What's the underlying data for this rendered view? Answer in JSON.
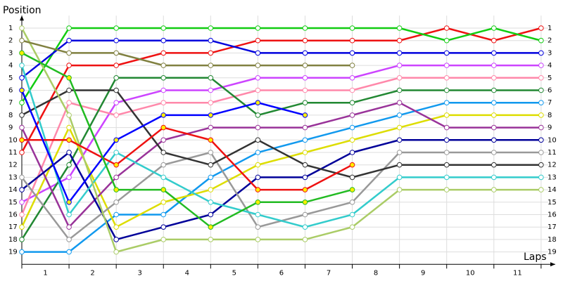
{
  "chart_data": {
    "type": "line",
    "y_title": "Position",
    "x_title": "Laps",
    "x": [
      0,
      1,
      2,
      3,
      4,
      5,
      6,
      7,
      8,
      9,
      10,
      11
    ],
    "xlim": [
      0,
      11.3
    ],
    "xticks": [
      {
        "value": 0.5,
        "label": "1"
      },
      {
        "value": 1.5,
        "label": "2"
      },
      {
        "value": 2.5,
        "label": "3"
      },
      {
        "value": 3.5,
        "label": "4"
      },
      {
        "value": 4.5,
        "label": "5"
      },
      {
        "value": 5.5,
        "label": "6"
      },
      {
        "value": 6.5,
        "label": "7"
      },
      {
        "value": 7.5,
        "label": "8"
      },
      {
        "value": 8.5,
        "label": "9"
      },
      {
        "value": 9.5,
        "label": "10"
      },
      {
        "value": 10.5,
        "label": "11"
      }
    ],
    "ylim": [
      0,
      20
    ],
    "y_inverted": true,
    "yticks": [
      1,
      2,
      3,
      4,
      5,
      6,
      7,
      8,
      9,
      10,
      11,
      12,
      13,
      14,
      15,
      16,
      17,
      18,
      19
    ],
    "grid": true,
    "series": [
      {
        "color": "#ee1111",
        "marker_fill": "#ffffff",
        "values": [
          11,
          4,
          4,
          3,
          3,
          2,
          2,
          2,
          2,
          1,
          2,
          1
        ]
      },
      {
        "color": "#11cc11",
        "marker_fill": "#ffffff",
        "values": [
          7,
          1,
          1,
          1,
          1,
          1,
          1,
          1,
          1,
          2,
          1,
          2
        ]
      },
      {
        "color": "#0000dd",
        "marker_fill": "#ffffff",
        "values": [
          5,
          2,
          2,
          2,
          2,
          3,
          3,
          3,
          3,
          3,
          3,
          3
        ]
      },
      {
        "color": "#cc44ff",
        "marker_fill": "#ffffff",
        "values": [
          15,
          13,
          7,
          6,
          6,
          5,
          5,
          5,
          4,
          4,
          4,
          4
        ]
      },
      {
        "color": "#ff88aa",
        "marker_fill": "#ffffff",
        "values": [
          16,
          7,
          8,
          7,
          7,
          6,
          6,
          6,
          5,
          5,
          5,
          5
        ]
      },
      {
        "color": "#228833",
        "marker_fill": "#ffffff",
        "values": [
          18,
          12,
          5,
          5,
          5,
          8,
          7,
          7,
          6,
          6,
          6,
          6
        ]
      },
      {
        "color": "#1199ee",
        "marker_fill": "#ffffff",
        "values": [
          19,
          19,
          16,
          16,
          13,
          11,
          10,
          9,
          8,
          7,
          7,
          7
        ]
      },
      {
        "color": "#dddd00",
        "marker_fill": "#ffffff",
        "values": [
          17,
          9,
          17,
          15,
          14,
          12,
          11,
          10,
          9,
          8,
          8,
          8
        ]
      },
      {
        "color": "#993399",
        "marker_fill": "#ffffff",
        "values": [
          9,
          17,
          13,
          10,
          9,
          9,
          9,
          8,
          7,
          9,
          9,
          9
        ]
      },
      {
        "color": "#000099",
        "marker_fill": "#ffffff",
        "values": [
          14,
          11,
          18,
          17,
          16,
          13,
          13,
          11,
          10,
          10,
          10,
          10
        ]
      },
      {
        "color": "#999999",
        "marker_fill": "#ffffff",
        "values": [
          13,
          18,
          15,
          12,
          11,
          17,
          16,
          15,
          11,
          11,
          11,
          11
        ]
      },
      {
        "color": "#333333",
        "marker_fill": "#ffffff",
        "values": [
          8,
          6,
          6,
          11,
          12,
          10,
          12,
          13,
          12,
          12,
          12,
          12
        ]
      },
      {
        "color": "#33cccc",
        "marker_fill": "#ffffff",
        "values": [
          4,
          16,
          11,
          13,
          15,
          16,
          17,
          16,
          13,
          13,
          13,
          13
        ]
      },
      {
        "color": "#aacc66",
        "marker_fill": "#ffffff",
        "values": [
          1,
          8,
          19,
          18,
          18,
          18,
          18,
          17,
          14,
          14,
          14,
          14
        ]
      },
      {
        "color": "#808040",
        "marker_fill": "#ffffff",
        "values": [
          2,
          3,
          3,
          4,
          4,
          4,
          4,
          4,
          null,
          null,
          null,
          null
        ]
      },
      {
        "color": "#ee1111",
        "marker_fill": "#ffee00",
        "values": [
          10,
          10,
          12,
          9,
          10,
          14,
          14,
          12,
          null,
          null,
          null,
          null
        ]
      },
      {
        "color": "#0000ff",
        "marker_fill": "#ffee00",
        "values": [
          6,
          15,
          10,
          8,
          8,
          7,
          8,
          null,
          null,
          null,
          null,
          null
        ]
      },
      {
        "color": "#22bb22",
        "marker_fill": "#ffee00",
        "values": [
          3,
          5,
          14,
          14,
          17,
          15,
          15,
          14,
          null,
          null,
          null,
          null
        ]
      }
    ]
  }
}
